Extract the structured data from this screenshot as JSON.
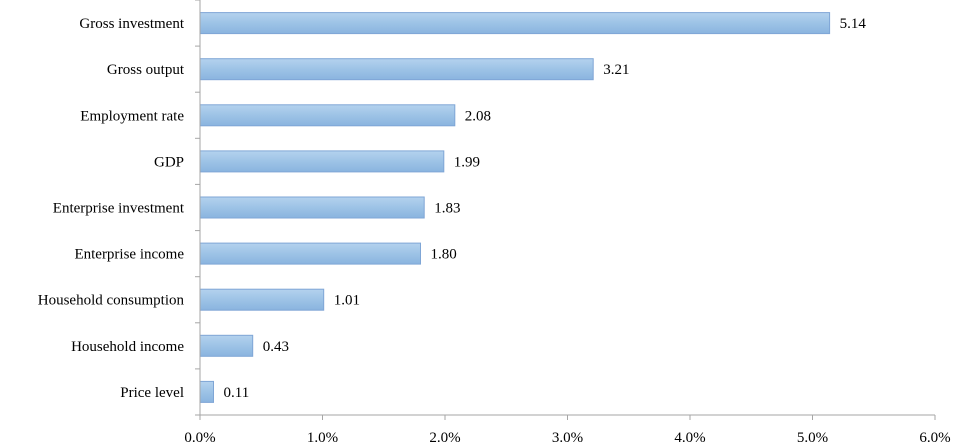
{
  "chart_data": {
    "type": "bar",
    "orientation": "horizontal",
    "title": "",
    "xlabel": "",
    "ylabel": "",
    "categories": [
      "Gross investment",
      "Gross output",
      "Employment rate",
      "GDP",
      "Enterprise investment",
      "Enterprise income",
      "Household consumption",
      "Household income",
      "Price level"
    ],
    "values": [
      5.14,
      3.21,
      2.08,
      1.99,
      1.83,
      1.8,
      1.01,
      0.43,
      0.11
    ],
    "value_labels": [
      "5.14",
      "3.21",
      "2.08",
      "1.99",
      "1.83",
      "1.80",
      "1.01",
      "0.43",
      "0.11"
    ],
    "xlim": [
      0,
      6
    ],
    "x_ticks": [
      0,
      1,
      2,
      3,
      4,
      5,
      6
    ],
    "x_tick_labels": [
      "0.0%",
      "1.0%",
      "2.0%",
      "3.0%",
      "4.0%",
      "5.0%",
      "6.0%"
    ],
    "grid": false,
    "legend": "none",
    "colors": {
      "bar_fill": "#9dc3e6",
      "bar_stroke": "#7fa6d6",
      "axis": "#a6a6a6",
      "text": "#000000"
    }
  }
}
